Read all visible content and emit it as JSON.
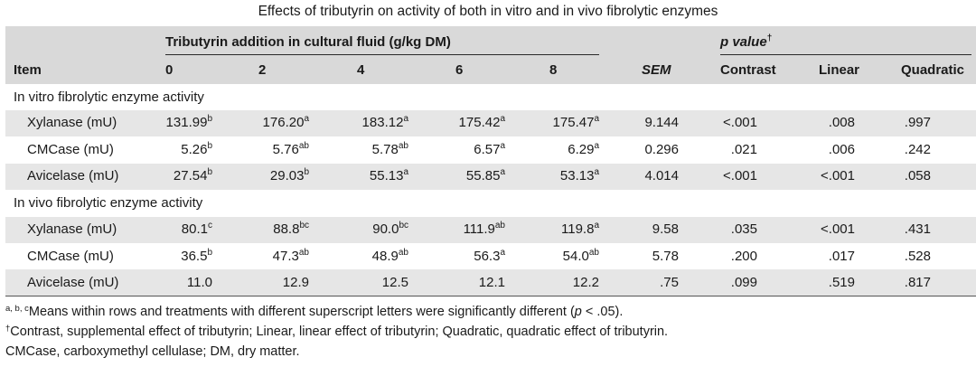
{
  "title": "Effects of tributyrin on activity of both in vitro and in vivo fibrolytic enzymes",
  "header": {
    "group_label": "Tributyrin addition in cultural fluid (g/kg DM)",
    "pvalue_label": "p value",
    "pvalue_mark": "†",
    "item": "Item",
    "doses": [
      "0",
      "2",
      "4",
      "6",
      "8"
    ],
    "sem": "SEM",
    "contrast": "Contrast",
    "linear": "Linear",
    "quadratic": "Quadratic"
  },
  "sections": [
    {
      "label": "In vitro fibrolytic enzyme activity",
      "rows": [
        {
          "item": "Xylanase (mU)",
          "vals": [
            [
              "131.99",
              "b"
            ],
            [
              "176.20",
              "a"
            ],
            [
              "183.12",
              "a"
            ],
            [
              "175.42",
              "a"
            ],
            [
              "175.47",
              "a"
            ]
          ],
          "sem": "9.144",
          "contrast": "<.001",
          "linear": ".008",
          "quadratic": ".997"
        },
        {
          "item": "CMCase (mU)",
          "vals": [
            [
              "5.26",
              "b"
            ],
            [
              "5.76",
              "ab"
            ],
            [
              "5.78",
              "ab"
            ],
            [
              "6.57",
              "a"
            ],
            [
              "6.29",
              "a"
            ]
          ],
          "sem": "0.296",
          "contrast": ".021",
          "linear": ".006",
          "quadratic": ".242"
        },
        {
          "item": "Avicelase (mU)",
          "vals": [
            [
              "27.54",
              "b"
            ],
            [
              "29.03",
              "b"
            ],
            [
              "55.13",
              "a"
            ],
            [
              "55.85",
              "a"
            ],
            [
              "53.13",
              "a"
            ]
          ],
          "sem": "4.014",
          "contrast": "<.001",
          "linear": "<.001",
          "quadratic": ".058"
        }
      ]
    },
    {
      "label": "In vivo fibrolytic enzyme activity",
      "rows": [
        {
          "item": "Xylanase (mU)",
          "vals": [
            [
              "80.1",
              "c"
            ],
            [
              "88.8",
              "bc"
            ],
            [
              "90.0",
              "bc"
            ],
            [
              "111.9",
              "ab"
            ],
            [
              "119.8",
              "a"
            ]
          ],
          "sem": "9.58",
          "contrast": ".035",
          "linear": "<.001",
          "quadratic": ".431"
        },
        {
          "item": "CMCase (mU)",
          "vals": [
            [
              "36.5",
              "b"
            ],
            [
              "47.3",
              "ab"
            ],
            [
              "48.9",
              "ab"
            ],
            [
              "56.3",
              "a"
            ],
            [
              "54.0",
              "ab"
            ]
          ],
          "sem": "5.78",
          "contrast": ".200",
          "linear": ".017",
          "quadratic": ".528"
        },
        {
          "item": "Avicelase (mU)",
          "vals": [
            [
              "11.0",
              ""
            ],
            [
              "12.9",
              ""
            ],
            [
              "12.5",
              ""
            ],
            [
              "12.1",
              ""
            ],
            [
              "12.2",
              ""
            ]
          ],
          "sem": ".75",
          "contrast": ".099",
          "linear": ".519",
          "quadratic": ".817"
        }
      ]
    }
  ],
  "footnotes": {
    "sig_marks": "a, b, c",
    "sig_text_1": "Means within rows and treatments with different superscript letters were significantly different (",
    "sig_p": "p",
    "sig_text_2": " < .05).",
    "dagger_mark": "†",
    "dagger_text": "Contrast, supplemental effect of tributyrin; Linear, linear effect of tributyrin; Quadratic, quadratic effect of tributyrin.",
    "abbrev": "CMCase, carboxymethyl cellulase; DM, dry matter."
  }
}
